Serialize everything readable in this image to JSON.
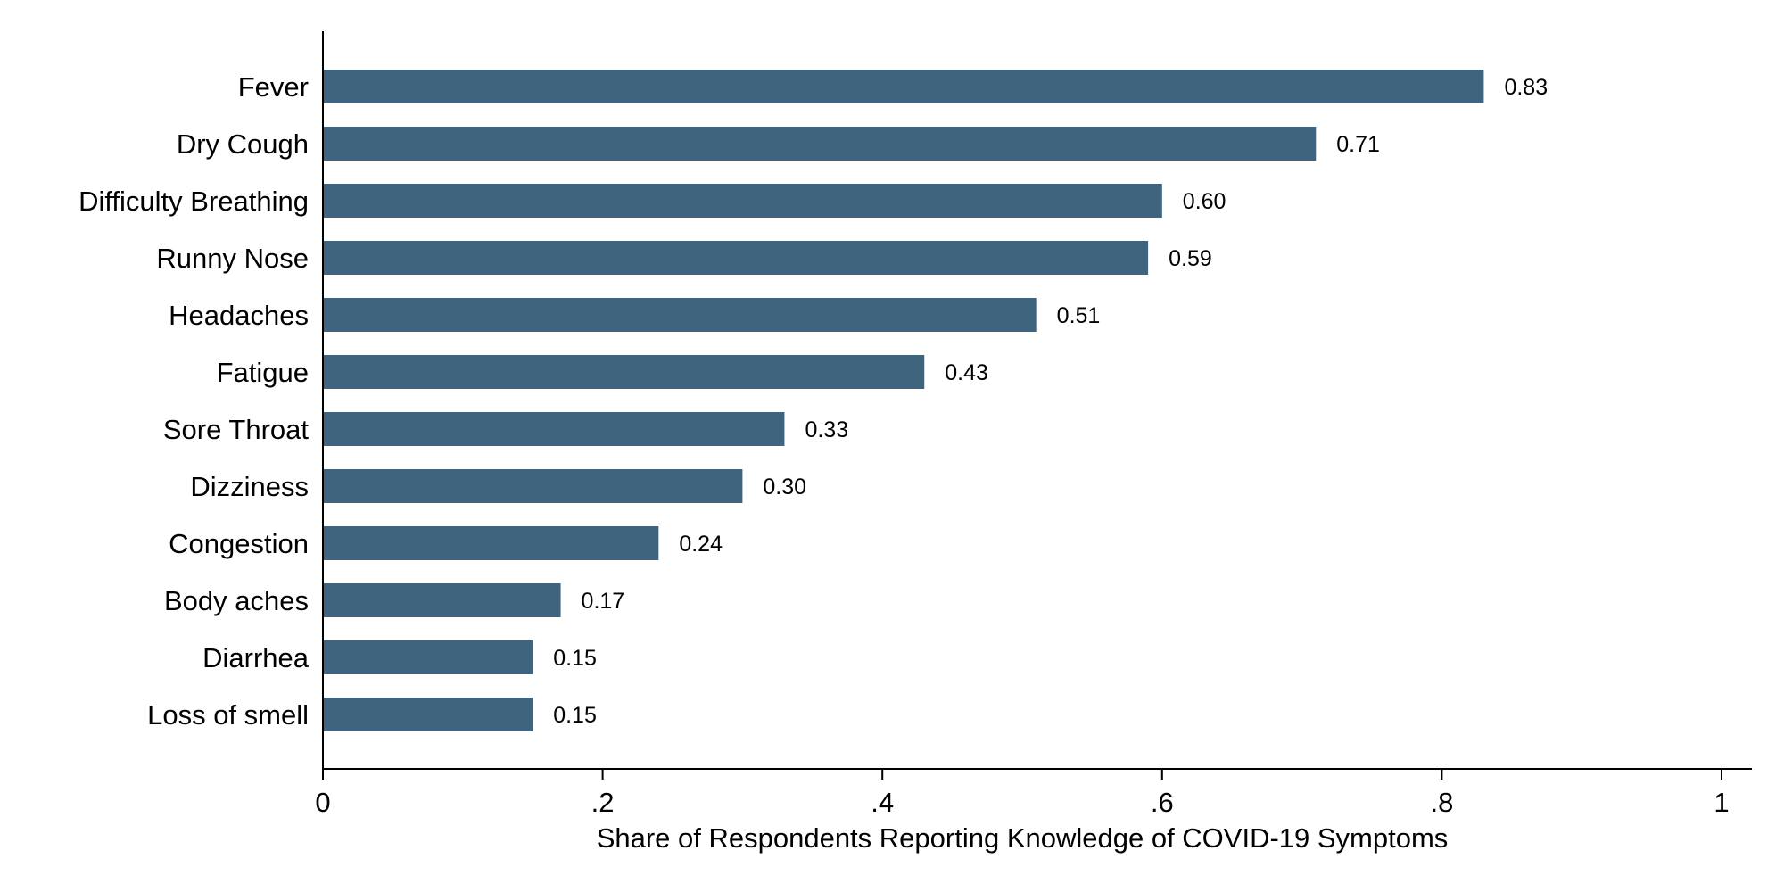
{
  "chart_data": {
    "type": "bar",
    "orientation": "horizontal",
    "categories": [
      "Fever",
      "Dry Cough",
      "Difficulty Breathing",
      "Runny Nose",
      "Headaches",
      "Fatigue",
      "Sore Throat",
      "Dizziness",
      "Congestion",
      "Body aches",
      "Diarrhea",
      "Loss of smell"
    ],
    "values": [
      0.83,
      0.71,
      0.6,
      0.59,
      0.51,
      0.43,
      0.33,
      0.3,
      0.24,
      0.17,
      0.15,
      0.15
    ],
    "value_labels": [
      "0.83",
      "0.71",
      "0.60",
      "0.59",
      "0.51",
      "0.43",
      "0.33",
      "0.30",
      "0.24",
      "0.17",
      "0.15",
      "0.15"
    ],
    "xlabel": "Share of Respondents Reporting Knowledge of COVID-19 Symptoms",
    "xlim": [
      0,
      1
    ],
    "x_ticks": [
      0,
      0.2,
      0.4,
      0.6,
      0.8,
      1
    ],
    "x_tick_labels": [
      "0",
      ".2",
      ".4",
      ".6",
      ".8",
      "1"
    ],
    "grid": false,
    "bar_color": "#3f647e"
  }
}
